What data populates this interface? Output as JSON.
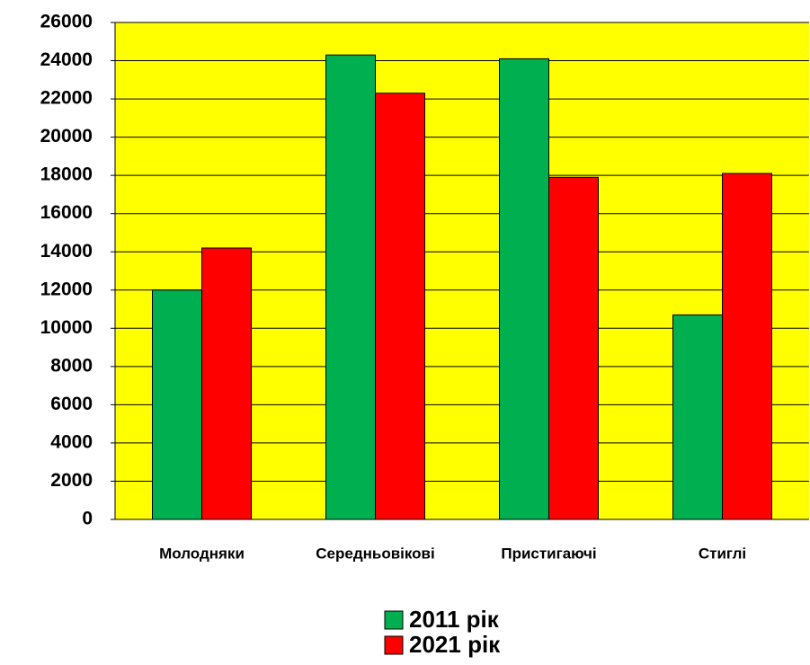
{
  "chart_data": {
    "type": "bar",
    "categories": [
      "Молодняки",
      "Середньовікові",
      "Пристигаючі",
      "Стиглі"
    ],
    "series": [
      {
        "name": "2011 рік",
        "color": "#00b050",
        "values": [
          12000,
          24300,
          24100,
          10700
        ]
      },
      {
        "name": "2021 рік",
        "color": "#ff0000",
        "values": [
          14200,
          22300,
          17900,
          18100
        ]
      }
    ],
    "ylim": [
      0,
      26000
    ],
    "yticks": [
      0,
      2000,
      4000,
      6000,
      8000,
      10000,
      12000,
      14000,
      16000,
      18000,
      20000,
      22000,
      24000,
      26000
    ],
    "grid": true,
    "plot_background": "#ffff00",
    "legend": "bottom"
  }
}
